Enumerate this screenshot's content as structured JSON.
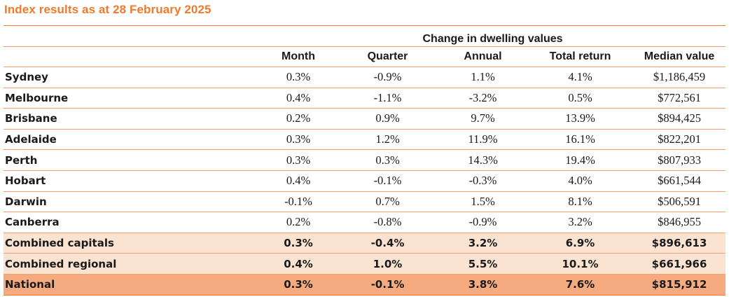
{
  "title": "Index results as at 28 February 2025",
  "table": {
    "group_header": "Change in dwelling values",
    "columns": [
      "Month",
      "Quarter",
      "Annual",
      "Total return",
      "Median value"
    ],
    "rows": [
      {
        "region": "Sydney",
        "month": "0.3%",
        "quarter": "-0.9%",
        "annual": "1.1%",
        "total_return": "4.1%",
        "median_value": "$1,186,459"
      },
      {
        "region": "Melbourne",
        "month": "0.4%",
        "quarter": "-1.1%",
        "annual": "-3.2%",
        "total_return": "0.5%",
        "median_value": "$772,561"
      },
      {
        "region": "Brisbane",
        "month": "0.2%",
        "quarter": "0.9%",
        "annual": "9.7%",
        "total_return": "13.9%",
        "median_value": "$894,425"
      },
      {
        "region": "Adelaide",
        "month": "0.3%",
        "quarter": "1.2%",
        "annual": "11.9%",
        "total_return": "16.1%",
        "median_value": "$822,201"
      },
      {
        "region": "Perth",
        "month": "0.3%",
        "quarter": "0.3%",
        "annual": "14.3%",
        "total_return": "19.4%",
        "median_value": "$807,933"
      },
      {
        "region": "Hobart",
        "month": "0.4%",
        "quarter": "-0.1%",
        "annual": "-0.3%",
        "total_return": "4.0%",
        "median_value": "$661,544"
      },
      {
        "region": "Darwin",
        "month": "-0.1%",
        "quarter": "0.7%",
        "annual": "1.5%",
        "total_return": "8.1%",
        "median_value": "$506,591"
      },
      {
        "region": "Canberra",
        "month": "0.2%",
        "quarter": "-0.8%",
        "annual": "-0.9%",
        "total_return": "3.2%",
        "median_value": "$846,955"
      },
      {
        "region": "Combined capitals",
        "month": "0.3%",
        "quarter": "-0.4%",
        "annual": "3.2%",
        "total_return": "6.9%",
        "median_value": "$896,613"
      },
      {
        "region": "Combined regional",
        "month": "0.4%",
        "quarter": "1.0%",
        "annual": "5.5%",
        "total_return": "10.1%",
        "median_value": "$661,966"
      },
      {
        "region": "National",
        "month": "0.3%",
        "quarter": "-0.1%",
        "annual": "3.8%",
        "total_return": "7.6%",
        "median_value": "$815,912"
      }
    ]
  },
  "colors": {
    "accent": "#f07a2c",
    "rule": "#f3a06b",
    "highlight_light": "#fbe3d2",
    "highlight_strong": "#f5aa80"
  }
}
